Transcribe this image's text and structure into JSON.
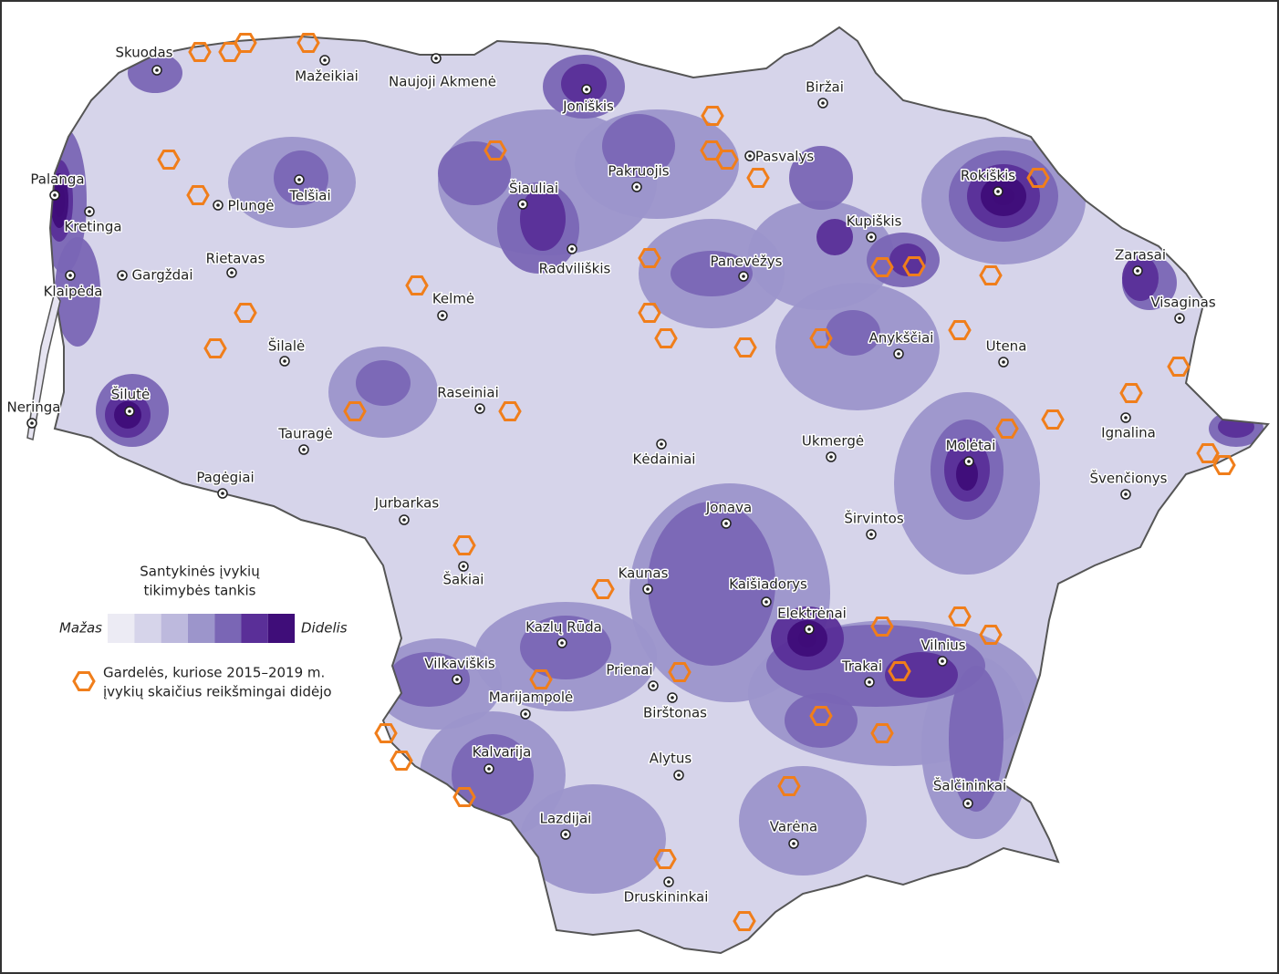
{
  "legend": {
    "title": [
      "Santykinės įvykių",
      "tikimybės tankis"
    ],
    "low": "Mažas",
    "high": "Didelis",
    "colors": [
      "#ecebf4",
      "#d6d4ea",
      "#bdb9dd",
      "#9c95cb",
      "#7a66b5",
      "#5a2f98",
      "#3f0d79"
    ],
    "hex_label": [
      "Gardelės, kuriose 2015–2019 m.",
      "įvykių skaičius reikšmingai didėjo"
    ],
    "hex_color": "#f07e1b"
  },
  "cities": [
    "Skuodas",
    "Mažeikiai",
    "Naujoji Akmenė",
    "Joniškis",
    "Biržai",
    "Pasvalys",
    "Pakruojis",
    "Šiauliai",
    "Telšiai",
    "Plungė",
    "Palanga",
    "Kretinga",
    "Rokiškis",
    "Kupiškis",
    "Radviliškis",
    "Panevėžys",
    "Rietavas",
    "Gargždai",
    "Klaipėda",
    "Zarasai",
    "Visaginas",
    "Kelmė",
    "Anykščiai",
    "Šilalė",
    "Utena",
    "Šilutė",
    "Neringa",
    "Raseiniai",
    "Tauragė",
    "Ignalina",
    "Kėdainiai",
    "Ukmergė",
    "Molėtai",
    "Pagėgiai",
    "Švenčionys",
    "Jurbarkas",
    "Jonava",
    "Širvintos",
    "Šakiai",
    "Kaunas",
    "Kaišiadorys",
    "Elektrėnai",
    "Kazlų Rūda",
    "Vilnius",
    "Vilkaviškis",
    "Trakai",
    "Prienai",
    "Marijampolė",
    "Birštonas",
    "Kalvarija",
    "Alytus",
    "Šalčininkai",
    "Lazdijai",
    "Varėna",
    "Druskininkai"
  ]
}
